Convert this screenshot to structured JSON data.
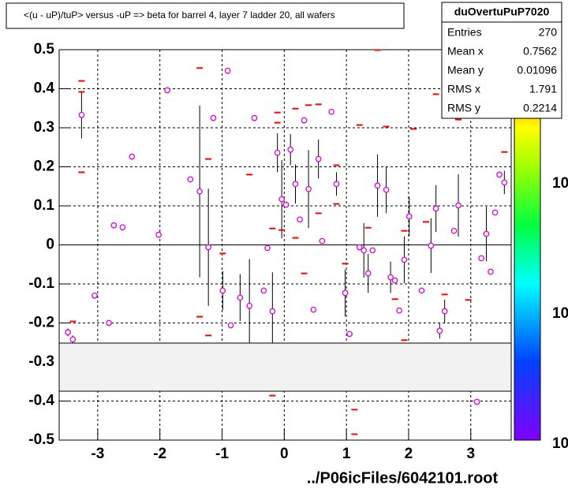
{
  "chart_data": {
    "type": "profile",
    "title": "<(u - uP)/tuP> versus  -uP => beta for barrel 4, layer 7 ladder 20, all wafers",
    "footer": "../P06icFiles/6042101.root",
    "xlim": [
      -3.62,
      3.65
    ],
    "ylim": [
      -0.5,
      0.5
    ],
    "xticks": [
      -3,
      -2,
      -1,
      0,
      1,
      2,
      3
    ],
    "yticks": [
      -0.5,
      -0.4,
      -0.3,
      -0.2,
      -0.1,
      0,
      0.1,
      0.2,
      0.3,
      0.4,
      0.5
    ],
    "grid": true,
    "stats": {
      "title": "duOvertuPuP7020",
      "rows": [
        {
          "label": "Entries",
          "value": "270"
        },
        {
          "label": "Mean x",
          "value": "0.7562"
        },
        {
          "label": "Mean y",
          "value": "0.01096"
        },
        {
          "label": "RMS x",
          "value": "1.791"
        },
        {
          "label": "RMS y",
          "value": "0.2214"
        }
      ]
    },
    "palette_labels": [
      "10",
      "10",
      "10"
    ],
    "series": [
      {
        "name": "profile",
        "color": "#e000e0",
        "x": [
          -3.48,
          -3.4,
          -3.26,
          -3.05,
          -2.82,
          -2.74,
          -2.6,
          -2.45,
          -2.02,
          -1.88,
          -1.51,
          -1.36,
          -1.22,
          -1.14,
          -0.99,
          -0.91,
          -0.86,
          -0.71,
          -0.56,
          -0.48,
          -0.33,
          -0.27,
          -0.19,
          -0.11,
          -0.04,
          0.03,
          0.1,
          0.18,
          0.25,
          0.32,
          0.39,
          0.47,
          0.55,
          0.61,
          0.76,
          0.84,
          0.98,
          1.05,
          1.21,
          1.28,
          1.35,
          1.42,
          1.5,
          1.64,
          1.71,
          1.78,
          1.85,
          1.93,
          2.01,
          2.21,
          2.36,
          2.44,
          2.5,
          2.58,
          2.73,
          2.8,
          3.1,
          3.17,
          3.25,
          3.32,
          3.39,
          3.46,
          3.54
        ],
        "values": [
          -0.224,
          -0.242,
          0.333,
          -0.13,
          -0.2,
          0.05,
          0.045,
          0.226,
          0.026,
          0.396,
          0.168,
          0.137,
          -0.006,
          0.325,
          -0.117,
          0.446,
          -0.206,
          -0.135,
          -0.156,
          0.325,
          -0.117,
          -0.008,
          -0.17,
          0.236,
          0.117,
          0.103,
          0.244,
          0.156,
          0.065,
          0.319,
          0.143,
          -0.166,
          0.22,
          0.01,
          0.341,
          0.156,
          -0.123,
          -0.228,
          -0.006,
          -0.014,
          -0.073,
          -0.014,
          0.152,
          0.141,
          -0.083,
          -0.091,
          -0.168,
          -0.038,
          0.073,
          -0.117,
          -0.002,
          0.093,
          -0.22,
          -0.17,
          0.036,
          0.101,
          -0.402,
          -0.034,
          0.028,
          -0.069,
          0.083,
          0.18,
          0.16
        ],
        "errors": [
          0.01,
          0.01,
          0.06,
          0,
          0,
          0,
          0,
          0,
          0,
          0,
          0,
          0.22,
          0.15,
          0,
          0.05,
          0,
          0,
          0.06,
          0.12,
          0,
          0,
          0,
          0.1,
          0.05,
          0.1,
          0,
          0.04,
          0.05,
          0,
          0,
          0.1,
          0,
          0.05,
          0,
          0,
          0.03,
          0.06,
          0,
          0,
          0.07,
          0.05,
          0,
          0.08,
          0.06,
          0.04,
          0,
          0,
          0.06,
          0.05,
          0,
          0.07,
          0.06,
          0.02,
          0.03,
          0,
          0.08,
          0,
          0,
          0.07,
          0,
          0,
          0,
          0.03
        ]
      },
      {
        "name": "entries",
        "color": "#ff0000",
        "x": [
          -3.26,
          -3.26,
          -3.26,
          -3.4,
          -1.36,
          -1.22,
          -1.22,
          -1.36,
          -0.99,
          -0.56,
          -0.19,
          -0.19,
          -0.11,
          -0.11,
          -0.04,
          0.18,
          0.18,
          0.39,
          0.55,
          0.55,
          0.32,
          0.84,
          0.84,
          0.98,
          1.13,
          1.13,
          1.21,
          1.5,
          1.64,
          1.35,
          1.78,
          1.93,
          1.93,
          2.08,
          2.28,
          2.44,
          2.58,
          2.8,
          2.96,
          3.54
        ],
        "values": [
          0.42,
          0.392,
          0.186,
          -0.196,
          0.453,
          0.22,
          -0.232,
          -0.184,
          -0.022,
          0.18,
          0.042,
          -0.386,
          0.339,
          0.313,
          0.038,
          0.349,
          0.018,
          0.358,
          0.36,
          0.081,
          -0.073,
          0.204,
          0.105,
          -0.048,
          -0.422,
          -0.485,
          0.307,
          0.499,
          0.303,
          0.044,
          -0.139,
          0.036,
          -0.244,
          0.297,
          0.059,
          0.386,
          -0.127,
          0.321,
          -0.141,
          0.238
        ]
      }
    ]
  }
}
